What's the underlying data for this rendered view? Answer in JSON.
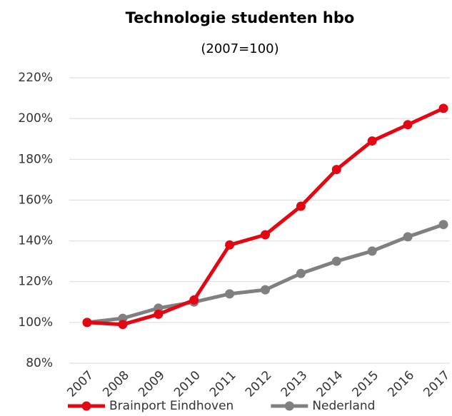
{
  "chart_data": {
    "type": "line",
    "title": "Technologie studenten hbo",
    "subtitle": "(2007=100)",
    "categories": [
      "2007",
      "2008",
      "2009",
      "2010",
      "2011",
      "2012",
      "2013",
      "2014",
      "2015",
      "2016",
      "2017"
    ],
    "series": [
      {
        "name": "Brainport Eindhoven",
        "color": "#e30613",
        "values": [
          100,
          99,
          104,
          111,
          138,
          143,
          157,
          175,
          189,
          197,
          205
        ]
      },
      {
        "name": "Nederland",
        "color": "#808080",
        "values": [
          100,
          102,
          107,
          110,
          114,
          116,
          124,
          130,
          135,
          142,
          148
        ]
      }
    ],
    "ylim": [
      80,
      220
    ],
    "yticks": [
      {
        "value": 80,
        "label": "80%"
      },
      {
        "value": 100,
        "label": "100%"
      },
      {
        "value": 120,
        "label": "120%"
      },
      {
        "value": 140,
        "label": "140%"
      },
      {
        "value": 160,
        "label": "160%"
      },
      {
        "value": 180,
        "label": "180%"
      },
      {
        "value": 200,
        "label": "200%"
      },
      {
        "value": 220,
        "label": "220%"
      }
    ],
    "grid": true,
    "legend": "bottom"
  }
}
